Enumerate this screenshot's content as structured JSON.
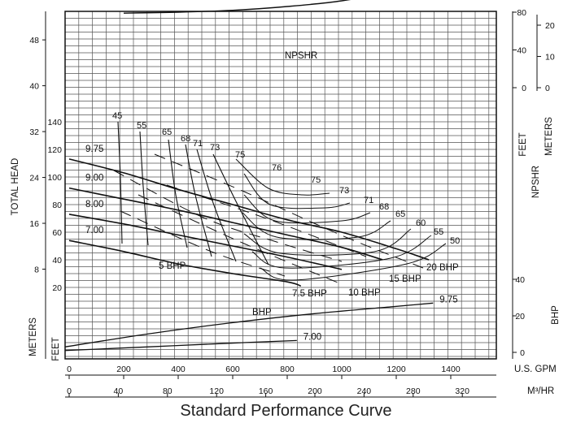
{
  "chart_data": {
    "type": "line",
    "title": "Standard Performance Curve",
    "x_axis": {
      "gpm": {
        "label": "U.S. GPM",
        "range": [
          0,
          1450
        ],
        "ticks": [
          0,
          200,
          400,
          600,
          800,
          1000,
          1200,
          1400
        ]
      },
      "m3hr": {
        "label": "M³/HR",
        "ticks": [
          0,
          40,
          80,
          120,
          160,
          200,
          240,
          280,
          320
        ]
      }
    },
    "y_axis_left": {
      "label": "TOTAL HEAD",
      "feet": {
        "label": "FEET",
        "range": [
          0,
          150
        ],
        "ticks": [
          20,
          40,
          60,
          80,
          100,
          120,
          140
        ]
      },
      "meters": {
        "label": "METERS",
        "ticks": [
          8,
          16,
          24,
          32,
          40,
          48
        ]
      }
    },
    "y_axis_right": {
      "npshr": {
        "label_feet": "FEET",
        "label_meters": "METERS",
        "label": "NPSHR",
        "feet_ticks": [
          0,
          40,
          80
        ],
        "meter_ticks": [
          0,
          10,
          20
        ]
      },
      "bhp": {
        "label": "BHP",
        "ticks": [
          0,
          20,
          40
        ]
      }
    },
    "grid": true,
    "impeller_curves": [
      {
        "name": "9.75",
        "x": [
          0,
          200,
          400,
          600,
          800,
          1000,
          1200,
          1320
        ],
        "y": [
          113,
          103,
          91,
          80,
          69,
          60,
          48,
          40
        ]
      },
      {
        "name": "9.00",
        "x": [
          0,
          200,
          400,
          600,
          800,
          1000,
          1150
        ],
        "y": [
          92,
          84,
          76,
          67,
          58,
          49,
          40
        ]
      },
      {
        "name": "8.00",
        "x": [
          0,
          200,
          400,
          600,
          800,
          1000
        ],
        "y": [
          73,
          66,
          58,
          50,
          42,
          33
        ]
      },
      {
        "name": "7.00",
        "x": [
          0,
          200,
          400,
          600,
          800,
          850
        ],
        "y": [
          54,
          46,
          37,
          30,
          24,
          21
        ]
      }
    ],
    "efficiency_labels": [
      "45",
      "55",
      "65",
      "68",
      "71",
      "73",
      "75",
      "76",
      "75",
      "73",
      "71",
      "68",
      "65",
      "60",
      "55",
      "50"
    ],
    "bhp_labels": [
      "5 BHP",
      "7.5 BHP",
      "10 BHP",
      "15 BHP",
      "20 BHP"
    ],
    "npshr": {
      "label": "NPSHR",
      "x": [
        200,
        400,
        600,
        800,
        1000,
        1200,
        1350
      ],
      "y_feet": [
        79,
        80,
        82,
        86,
        92,
        103,
        115
      ]
    },
    "bhp_curves": [
      {
        "name": "9.75",
        "x": [
          0,
          300,
          600,
          900,
          1200,
          1350
        ],
        "y": [
          3,
          10,
          16,
          21,
          25,
          27
        ]
      },
      {
        "name": "7.00",
        "x": [
          0,
          300,
          600,
          850
        ],
        "y": [
          1,
          3,
          5,
          6.5
        ]
      }
    ],
    "bhp_curve_label": "BHP"
  }
}
